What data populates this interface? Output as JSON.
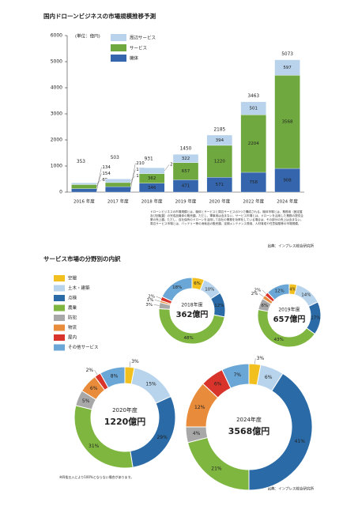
{
  "chart_data": [
    {
      "type": "bar",
      "stacked": true,
      "title": "国内ドローンビジネスの市場規模推移予測",
      "unit_label": "(単位：億円)",
      "categories": [
        "2016 年度",
        "2017 年度",
        "2018 年度",
        "2019 年度",
        "2020 年度",
        "2022 年度",
        "2024 年度"
      ],
      "series": [
        {
          "name": "機体",
          "color": "#3566ad",
          "values": [
            134,
            210,
            346,
            471,
            571,
            758,
            908
          ]
        },
        {
          "name": "サービス",
          "color": "#6fa83f",
          "values": [
            154,
            155,
            362,
            657,
            1220,
            2204,
            3568
          ]
        },
        {
          "name": "周辺サービス",
          "color": "#b9d3ec",
          "values": [
            65,
            138,
            224,
            322,
            394,
            501,
            597
          ]
        }
      ],
      "totals": [
        353,
        503,
        931,
        1450,
        2185,
        3463,
        5073
      ],
      "ylim": [
        0,
        6000
      ],
      "yticks": [
        0,
        1000,
        2000,
        3000,
        4000,
        5000,
        6000
      ],
      "legend": "top-left",
      "description": "ドローンビジネスの市場規模とは、機体とサービスと周辺サービスの3つで構成される。機体市場とは、業務用（固定翼及び回転翼）の完成品機体の販売額。ただし、軍事用は含まない。サービス市場とは、ドローンを活用した業務の提供企業の売上額。ただし、自社保有のドローンを活用して自社の業務を効率化している場合は、その部分の売上は含まない。周辺サービス市場とは、バッテリー等の消耗品の販売額、定期メンテナンス費用、人材育成や任意保険等の市場規模。",
      "source": "出典：インプレス総合研究所"
    },
    {
      "type": "donut",
      "title": "サービス市場の分野別の内訳",
      "categories": [
        "空撮",
        "土木・建築",
        "点検",
        "農業",
        "防犯",
        "物流",
        "屋内",
        "その他サービス"
      ],
      "colors": [
        "#f2c01e",
        "#b7d4ec",
        "#2a6aa6",
        "#7fb63f",
        "#a8a8a8",
        "#e88b3a",
        "#d9342b",
        "#6aa6d6"
      ],
      "pies": [
        {
          "title": "2018年度",
          "total_label": "362億円",
          "values": [
            6,
            10,
            12,
            48,
            3,
            1,
            2,
            18
          ],
          "value_labels": [
            "6%",
            "10%",
            "12%",
            "48%",
            "3%",
            "1%",
            "2%",
            "18%"
          ]
        },
        {
          "title": "2019年度",
          "total_label": "657億円",
          "values": [
            4,
            14,
            17,
            43,
            6,
            2,
            2,
            12
          ],
          "value_labels": [
            "4%",
            "14%",
            "17%",
            "43%",
            "6%",
            "2%",
            "2%",
            "12%"
          ]
        },
        {
          "title": "2020年度",
          "total_label": "1220億円",
          "values": [
            3,
            15,
            29,
            31,
            5,
            6,
            2,
            8
          ],
          "value_labels": [
            "3%",
            "15%",
            "29%",
            "31%",
            "5%",
            "6%",
            "2%",
            "8%"
          ]
        },
        {
          "title": "2024年度",
          "total_label": "3568億円",
          "values": [
            3,
            6,
            41,
            21,
            4,
            12,
            6,
            7
          ],
          "value_labels": [
            "3%",
            "6%",
            "41%",
            "21%",
            "4%",
            "12%",
            "6%",
            "7%"
          ]
        }
      ],
      "note": "※四捨五入により100%とならない場合があります。",
      "source": "出典：インプレス総合研究所"
    }
  ]
}
